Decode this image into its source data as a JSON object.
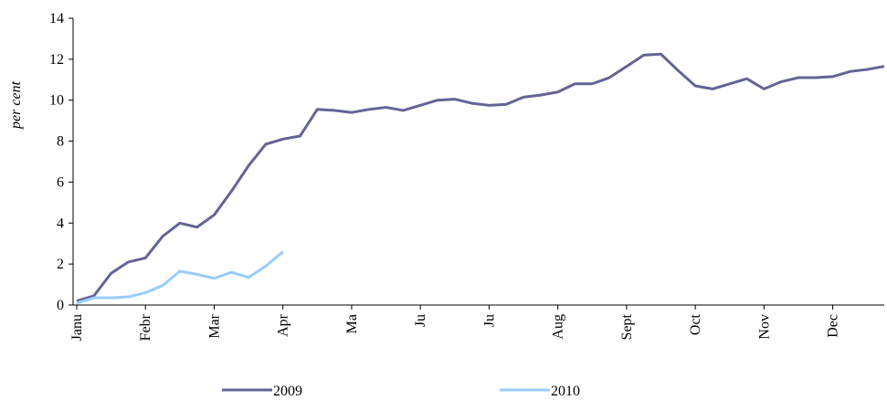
{
  "chart_data": {
    "type": "line",
    "y_label": "per cent",
    "categories": [
      "Janu",
      null,
      null,
      null,
      "Febr",
      null,
      null,
      null,
      "Mar",
      null,
      null,
      null,
      "Apr",
      null,
      null,
      null,
      "Ma",
      null,
      null,
      null,
      "Ju",
      null,
      null,
      null,
      "Ju",
      null,
      null,
      null,
      "Aug",
      null,
      null,
      null,
      "Sept",
      null,
      null,
      null,
      "Oct",
      null,
      null,
      null,
      "Nov",
      null,
      null,
      null,
      "Dec",
      null,
      null,
      null
    ],
    "series": [
      {
        "name": "2009",
        "color": "#646496",
        "values": [
          0.2,
          0.45,
          1.55,
          2.1,
          2.3,
          3.35,
          4.0,
          3.8,
          4.4,
          5.55,
          6.8,
          7.85,
          8.1,
          8.25,
          9.55,
          9.5,
          9.4,
          9.55,
          9.65,
          9.5,
          9.75,
          10.0,
          10.05,
          9.85,
          9.75,
          9.8,
          10.15,
          10.25,
          10.4,
          10.8,
          10.8,
          11.1,
          11.65,
          12.2,
          12.25,
          11.45,
          10.7,
          10.55,
          10.8,
          11.05,
          10.55,
          10.9,
          11.1,
          11.1,
          11.15,
          11.4,
          11.5,
          11.65
        ]
      },
      {
        "name": "2010",
        "color": "#99ccff",
        "values": [
          0.1,
          0.35,
          0.35,
          0.4,
          0.6,
          0.95,
          1.65,
          1.5,
          1.3,
          1.6,
          1.35,
          1.9,
          2.6,
          null,
          null,
          null,
          null,
          null,
          null,
          null,
          null,
          null,
          null,
          null,
          null,
          null,
          null,
          null,
          null,
          null,
          null,
          null,
          null,
          null,
          null,
          null,
          null,
          null,
          null,
          null,
          null,
          null,
          null,
          null,
          null,
          null,
          null,
          null
        ]
      }
    ],
    "ylim": [
      0,
      14
    ],
    "yticks": [
      0,
      2,
      4,
      6,
      8,
      10,
      12,
      14
    ]
  }
}
